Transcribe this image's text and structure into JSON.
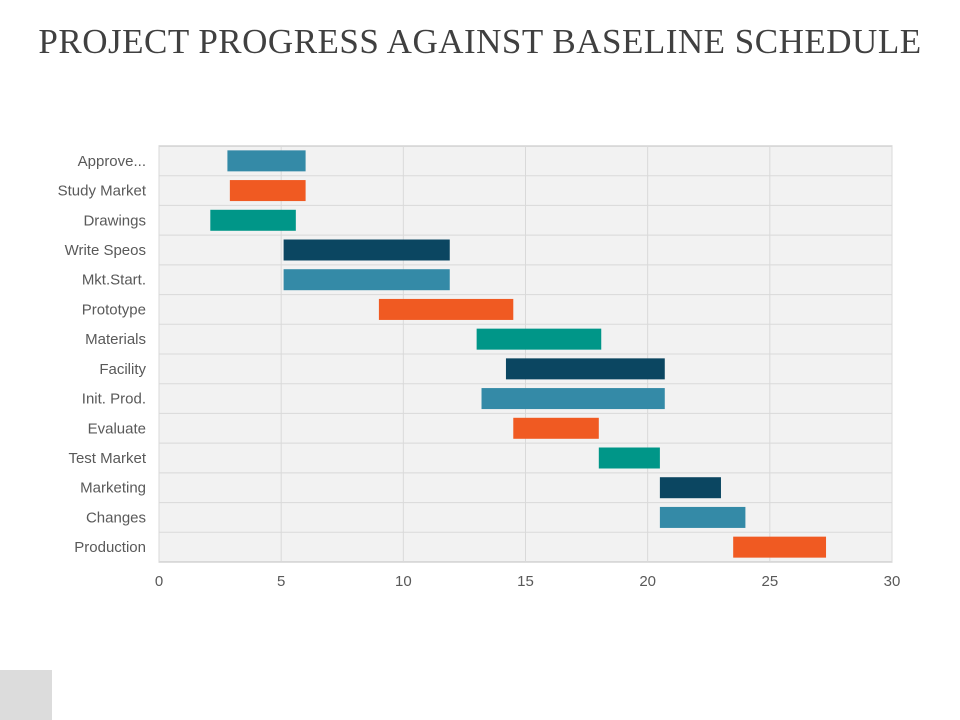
{
  "title": "PROJECT PROGRESS AGAINST BASELINE SCHEDULE",
  "chart_data": {
    "type": "bar",
    "orientation": "horizontal-floating",
    "categories": [
      "Approve...",
      "Study Market",
      "Drawings",
      "Write Speos",
      "Mkt.Start.",
      "Prototype",
      "Materials",
      "Facility",
      "Init. Prod.",
      "Evaluate",
      "Test Market",
      "Marketing",
      "Changes",
      "Production"
    ],
    "tasks": [
      {
        "start": 2.8,
        "end": 6.0
      },
      {
        "start": 2.9,
        "end": 6.0
      },
      {
        "start": 2.1,
        "end": 5.6
      },
      {
        "start": 5.1,
        "end": 11.9
      },
      {
        "start": 5.1,
        "end": 11.9
      },
      {
        "start": 9.0,
        "end": 14.5
      },
      {
        "start": 13.0,
        "end": 18.1
      },
      {
        "start": 14.2,
        "end": 20.7
      },
      {
        "start": 13.2,
        "end": 20.7
      },
      {
        "start": 14.5,
        "end": 18.0
      },
      {
        "start": 18.0,
        "end": 20.5
      },
      {
        "start": 20.5,
        "end": 23.0
      },
      {
        "start": 20.5,
        "end": 24.0
      },
      {
        "start": 23.5,
        "end": 27.3
      }
    ],
    "colors": [
      "#348aa7",
      "#f05a22",
      "#009688",
      "#0b4661"
    ],
    "xlim": [
      0,
      30
    ],
    "xticks": [
      "0",
      "5",
      "10",
      "15",
      "20",
      "25",
      "30"
    ],
    "grid": true,
    "plot_background": "#f2f2f2",
    "grid_color": "#d9d9d9",
    "label_color": "#595959"
  }
}
